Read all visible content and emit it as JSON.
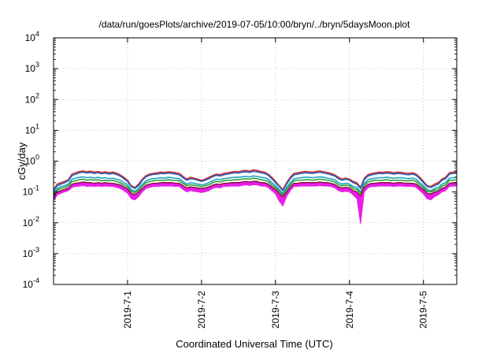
{
  "chart_data": {
    "type": "line",
    "title": "/data/run/goesPlots/archive/2019-07-05/10:00/bryn/../bryn/5daysMoon.plot",
    "xlabel": "Coordinated Universal Time (UTC)",
    "ylabel": "cGy/day",
    "yscale": "log",
    "ylim": [
      0.0001,
      10000
    ],
    "xlim": [
      0.0,
      5.45
    ],
    "x_ticks": [
      {
        "value": 1,
        "label": "2019-7-1"
      },
      {
        "value": 2,
        "label": "2019-7-2"
      },
      {
        "value": 3,
        "label": "2019-7-3"
      },
      {
        "value": 4,
        "label": "2019-7-4"
      },
      {
        "value": 5,
        "label": "2019-7-5"
      }
    ],
    "y_ticks": [
      {
        "value": 0.0001,
        "base": "10",
        "exp": "-4"
      },
      {
        "value": 0.001,
        "base": "10",
        "exp": "-3"
      },
      {
        "value": 0.01,
        "base": "10",
        "exp": "-2"
      },
      {
        "value": 0.1,
        "base": "10",
        "exp": "-1"
      },
      {
        "value": 1,
        "base": "10",
        "exp": "0"
      },
      {
        "value": 10,
        "base": "10",
        "exp": "1"
      },
      {
        "value": 100,
        "base": "10",
        "exp": "2"
      },
      {
        "value": 1000,
        "base": "10",
        "exp": "3"
      },
      {
        "value": 10000,
        "base": "10",
        "exp": "4"
      }
    ],
    "grid": true,
    "x": [
      0.0,
      0.05,
      0.1,
      0.15,
      0.2,
      0.25,
      0.3,
      0.35,
      0.4,
      0.45,
      0.5,
      0.55,
      0.6,
      0.65,
      0.7,
      0.75,
      0.8,
      0.85,
      0.9,
      0.95,
      1.0,
      1.05,
      1.1,
      1.15,
      1.2,
      1.25,
      1.3,
      1.35,
      1.4,
      1.45,
      1.5,
      1.55,
      1.6,
      1.65,
      1.7,
      1.75,
      1.8,
      1.85,
      1.9,
      1.95,
      2.0,
      2.05,
      2.1,
      2.15,
      2.2,
      2.25,
      2.3,
      2.35,
      2.4,
      2.45,
      2.5,
      2.55,
      2.6,
      2.65,
      2.7,
      2.75,
      2.8,
      2.85,
      2.9,
      2.95,
      3.0,
      3.05,
      3.1,
      3.15,
      3.2,
      3.25,
      3.3,
      3.35,
      3.4,
      3.45,
      3.5,
      3.55,
      3.6,
      3.65,
      3.7,
      3.75,
      3.8,
      3.85,
      3.9,
      3.95,
      4.0,
      4.05,
      4.1,
      4.15,
      4.2,
      4.25,
      4.3,
      4.35,
      4.4,
      4.45,
      4.5,
      4.55,
      4.6,
      4.65,
      4.7,
      4.75,
      4.8,
      4.85,
      4.9,
      4.95,
      5.0,
      5.05,
      5.1,
      5.15,
      5.2,
      5.25,
      5.3,
      5.35,
      5.4,
      5.45
    ],
    "series": [
      {
        "color": "#d62728",
        "values": [
          0.12,
          0.18,
          0.2,
          0.22,
          0.25,
          0.38,
          0.42,
          0.46,
          0.48,
          0.45,
          0.47,
          0.44,
          0.46,
          0.43,
          0.45,
          0.42,
          0.44,
          0.41,
          0.36,
          0.3,
          0.24,
          0.16,
          0.14,
          0.18,
          0.26,
          0.34,
          0.38,
          0.4,
          0.42,
          0.44,
          0.43,
          0.45,
          0.44,
          0.42,
          0.4,
          0.32,
          0.26,
          0.3,
          0.28,
          0.26,
          0.24,
          0.26,
          0.3,
          0.34,
          0.38,
          0.36,
          0.4,
          0.42,
          0.44,
          0.46,
          0.45,
          0.48,
          0.5,
          0.47,
          0.52,
          0.5,
          0.46,
          0.44,
          0.38,
          0.3,
          0.22,
          0.16,
          0.12,
          0.2,
          0.3,
          0.4,
          0.42,
          0.44,
          0.46,
          0.45,
          0.44,
          0.46,
          0.48,
          0.45,
          0.43,
          0.4,
          0.36,
          0.3,
          0.26,
          0.28,
          0.26,
          0.22,
          0.2,
          0.14,
          0.28,
          0.36,
          0.4,
          0.42,
          0.44,
          0.43,
          0.45,
          0.44,
          0.42,
          0.44,
          0.43,
          0.41,
          0.4,
          0.42,
          0.38,
          0.3,
          0.22,
          0.16,
          0.15,
          0.18,
          0.2,
          0.26,
          0.3,
          0.42,
          0.44,
          0.46
        ]
      },
      {
        "color": "#1f5fbf",
        "values": [
          0.11,
          0.16,
          0.18,
          0.2,
          0.23,
          0.34,
          0.38,
          0.42,
          0.44,
          0.41,
          0.43,
          0.4,
          0.42,
          0.39,
          0.41,
          0.38,
          0.4,
          0.37,
          0.33,
          0.27,
          0.22,
          0.15,
          0.13,
          0.16,
          0.24,
          0.31,
          0.35,
          0.37,
          0.38,
          0.4,
          0.39,
          0.41,
          0.4,
          0.38,
          0.36,
          0.29,
          0.24,
          0.27,
          0.26,
          0.24,
          0.22,
          0.24,
          0.27,
          0.31,
          0.35,
          0.33,
          0.36,
          0.38,
          0.4,
          0.42,
          0.41,
          0.44,
          0.45,
          0.43,
          0.47,
          0.45,
          0.42,
          0.4,
          0.35,
          0.27,
          0.2,
          0.15,
          0.11,
          0.18,
          0.27,
          0.36,
          0.38,
          0.4,
          0.42,
          0.41,
          0.4,
          0.42,
          0.44,
          0.41,
          0.39,
          0.36,
          0.33,
          0.27,
          0.24,
          0.26,
          0.24,
          0.2,
          0.18,
          0.13,
          0.25,
          0.33,
          0.36,
          0.38,
          0.4,
          0.39,
          0.41,
          0.4,
          0.38,
          0.4,
          0.39,
          0.37,
          0.36,
          0.38,
          0.35,
          0.27,
          0.2,
          0.15,
          0.14,
          0.16,
          0.18,
          0.24,
          0.27,
          0.38,
          0.4,
          0.42
        ]
      },
      {
        "color": "#1aa3c8",
        "values": [
          0.095,
          0.13,
          0.15,
          0.16,
          0.18,
          0.26,
          0.28,
          0.3,
          0.31,
          0.29,
          0.3,
          0.28,
          0.3,
          0.28,
          0.29,
          0.27,
          0.28,
          0.26,
          0.24,
          0.2,
          0.17,
          0.12,
          0.105,
          0.13,
          0.18,
          0.23,
          0.26,
          0.27,
          0.28,
          0.29,
          0.28,
          0.3,
          0.29,
          0.28,
          0.27,
          0.22,
          0.18,
          0.2,
          0.19,
          0.18,
          0.17,
          0.18,
          0.2,
          0.23,
          0.26,
          0.25,
          0.27,
          0.28,
          0.29,
          0.3,
          0.3,
          0.31,
          0.32,
          0.31,
          0.33,
          0.32,
          0.3,
          0.29,
          0.26,
          0.2,
          0.16,
          0.12,
          0.09,
          0.14,
          0.2,
          0.27,
          0.28,
          0.29,
          0.3,
          0.3,
          0.29,
          0.3,
          0.31,
          0.3,
          0.28,
          0.27,
          0.25,
          0.2,
          0.18,
          0.19,
          0.18,
          0.15,
          0.14,
          0.1,
          0.19,
          0.25,
          0.27,
          0.28,
          0.29,
          0.29,
          0.3,
          0.29,
          0.28,
          0.29,
          0.29,
          0.28,
          0.27,
          0.28,
          0.26,
          0.2,
          0.16,
          0.12,
          0.11,
          0.13,
          0.14,
          0.18,
          0.2,
          0.28,
          0.29,
          0.3
        ]
      },
      {
        "color": "#2ca02c",
        "values": [
          0.085,
          0.115,
          0.13,
          0.14,
          0.16,
          0.22,
          0.23,
          0.25,
          0.26,
          0.24,
          0.25,
          0.24,
          0.25,
          0.23,
          0.24,
          0.23,
          0.24,
          0.22,
          0.2,
          0.17,
          0.145,
          0.105,
          0.095,
          0.115,
          0.155,
          0.2,
          0.22,
          0.23,
          0.24,
          0.24,
          0.24,
          0.25,
          0.24,
          0.24,
          0.23,
          0.19,
          0.16,
          0.17,
          0.165,
          0.16,
          0.15,
          0.16,
          0.17,
          0.2,
          0.22,
          0.21,
          0.23,
          0.24,
          0.24,
          0.25,
          0.25,
          0.26,
          0.27,
          0.26,
          0.28,
          0.27,
          0.25,
          0.24,
          0.22,
          0.17,
          0.14,
          0.105,
          0.08,
          0.12,
          0.17,
          0.23,
          0.24,
          0.24,
          0.25,
          0.25,
          0.24,
          0.25,
          0.26,
          0.25,
          0.24,
          0.23,
          0.21,
          0.17,
          0.16,
          0.165,
          0.16,
          0.13,
          0.12,
          0.09,
          0.165,
          0.21,
          0.23,
          0.24,
          0.24,
          0.24,
          0.25,
          0.24,
          0.24,
          0.24,
          0.24,
          0.23,
          0.23,
          0.24,
          0.22,
          0.17,
          0.14,
          0.105,
          0.1,
          0.115,
          0.12,
          0.155,
          0.17,
          0.24,
          0.24,
          0.25
        ]
      },
      {
        "color": "#8b1a4a",
        "values": [
          0.075,
          0.1,
          0.11,
          0.12,
          0.135,
          0.18,
          0.19,
          0.2,
          0.21,
          0.2,
          0.2,
          0.19,
          0.2,
          0.19,
          0.2,
          0.19,
          0.19,
          0.18,
          0.17,
          0.145,
          0.125,
          0.09,
          0.082,
          0.1,
          0.13,
          0.165,
          0.18,
          0.19,
          0.19,
          0.2,
          0.2,
          0.2,
          0.2,
          0.19,
          0.19,
          0.16,
          0.135,
          0.145,
          0.14,
          0.135,
          0.13,
          0.135,
          0.145,
          0.165,
          0.18,
          0.175,
          0.19,
          0.19,
          0.2,
          0.2,
          0.2,
          0.21,
          0.22,
          0.21,
          0.22,
          0.22,
          0.2,
          0.2,
          0.18,
          0.145,
          0.12,
          0.09,
          0.07,
          0.1,
          0.145,
          0.19,
          0.19,
          0.2,
          0.2,
          0.2,
          0.2,
          0.2,
          0.21,
          0.2,
          0.2,
          0.19,
          0.175,
          0.145,
          0.135,
          0.14,
          0.135,
          0.11,
          0.1,
          0.075,
          0.14,
          0.175,
          0.19,
          0.19,
          0.2,
          0.2,
          0.2,
          0.2,
          0.19,
          0.2,
          0.2,
          0.19,
          0.19,
          0.19,
          0.18,
          0.145,
          0.12,
          0.09,
          0.086,
          0.1,
          0.105,
          0.13,
          0.145,
          0.19,
          0.2,
          0.2
        ]
      }
    ],
    "band": {
      "color": "#e81ee8",
      "upper": [
        0.075,
        0.1,
        0.11,
        0.12,
        0.135,
        0.18,
        0.19,
        0.2,
        0.21,
        0.2,
        0.2,
        0.19,
        0.2,
        0.19,
        0.2,
        0.19,
        0.19,
        0.18,
        0.17,
        0.145,
        0.125,
        0.09,
        0.082,
        0.1,
        0.13,
        0.165,
        0.18,
        0.19,
        0.19,
        0.2,
        0.2,
        0.2,
        0.2,
        0.19,
        0.19,
        0.16,
        0.135,
        0.145,
        0.14,
        0.135,
        0.13,
        0.135,
        0.145,
        0.165,
        0.18,
        0.175,
        0.19,
        0.19,
        0.2,
        0.2,
        0.2,
        0.21,
        0.22,
        0.21,
        0.22,
        0.22,
        0.2,
        0.2,
        0.18,
        0.145,
        0.12,
        0.09,
        0.07,
        0.1,
        0.145,
        0.19,
        0.19,
        0.2,
        0.2,
        0.2,
        0.2,
        0.2,
        0.21,
        0.2,
        0.2,
        0.19,
        0.175,
        0.145,
        0.135,
        0.14,
        0.135,
        0.11,
        0.1,
        0.075,
        0.14,
        0.175,
        0.19,
        0.19,
        0.2,
        0.2,
        0.2,
        0.2,
        0.19,
        0.2,
        0.2,
        0.19,
        0.19,
        0.19,
        0.18,
        0.145,
        0.12,
        0.09,
        0.086,
        0.1,
        0.105,
        0.13,
        0.145,
        0.19,
        0.2,
        0.2
      ],
      "lower": [
        0.05,
        0.08,
        0.09,
        0.1,
        0.11,
        0.14,
        0.15,
        0.155,
        0.16,
        0.15,
        0.155,
        0.15,
        0.155,
        0.15,
        0.155,
        0.15,
        0.15,
        0.14,
        0.13,
        0.11,
        0.09,
        0.06,
        0.055,
        0.07,
        0.1,
        0.13,
        0.14,
        0.15,
        0.15,
        0.155,
        0.155,
        0.155,
        0.155,
        0.15,
        0.15,
        0.12,
        0.1,
        0.11,
        0.105,
        0.1,
        0.095,
        0.1,
        0.11,
        0.13,
        0.14,
        0.135,
        0.15,
        0.15,
        0.155,
        0.155,
        0.155,
        0.16,
        0.17,
        0.16,
        0.17,
        0.17,
        0.155,
        0.155,
        0.14,
        0.11,
        0.085,
        0.05,
        0.035,
        0.07,
        0.11,
        0.15,
        0.15,
        0.155,
        0.155,
        0.155,
        0.155,
        0.155,
        0.16,
        0.155,
        0.155,
        0.15,
        0.135,
        0.11,
        0.1,
        0.105,
        0.1,
        0.08,
        0.06,
        0.009,
        0.1,
        0.135,
        0.15,
        0.15,
        0.155,
        0.155,
        0.155,
        0.155,
        0.15,
        0.155,
        0.155,
        0.15,
        0.15,
        0.15,
        0.14,
        0.11,
        0.085,
        0.06,
        0.055,
        0.07,
        0.08,
        0.1,
        0.11,
        0.15,
        0.155,
        0.155
      ]
    }
  }
}
